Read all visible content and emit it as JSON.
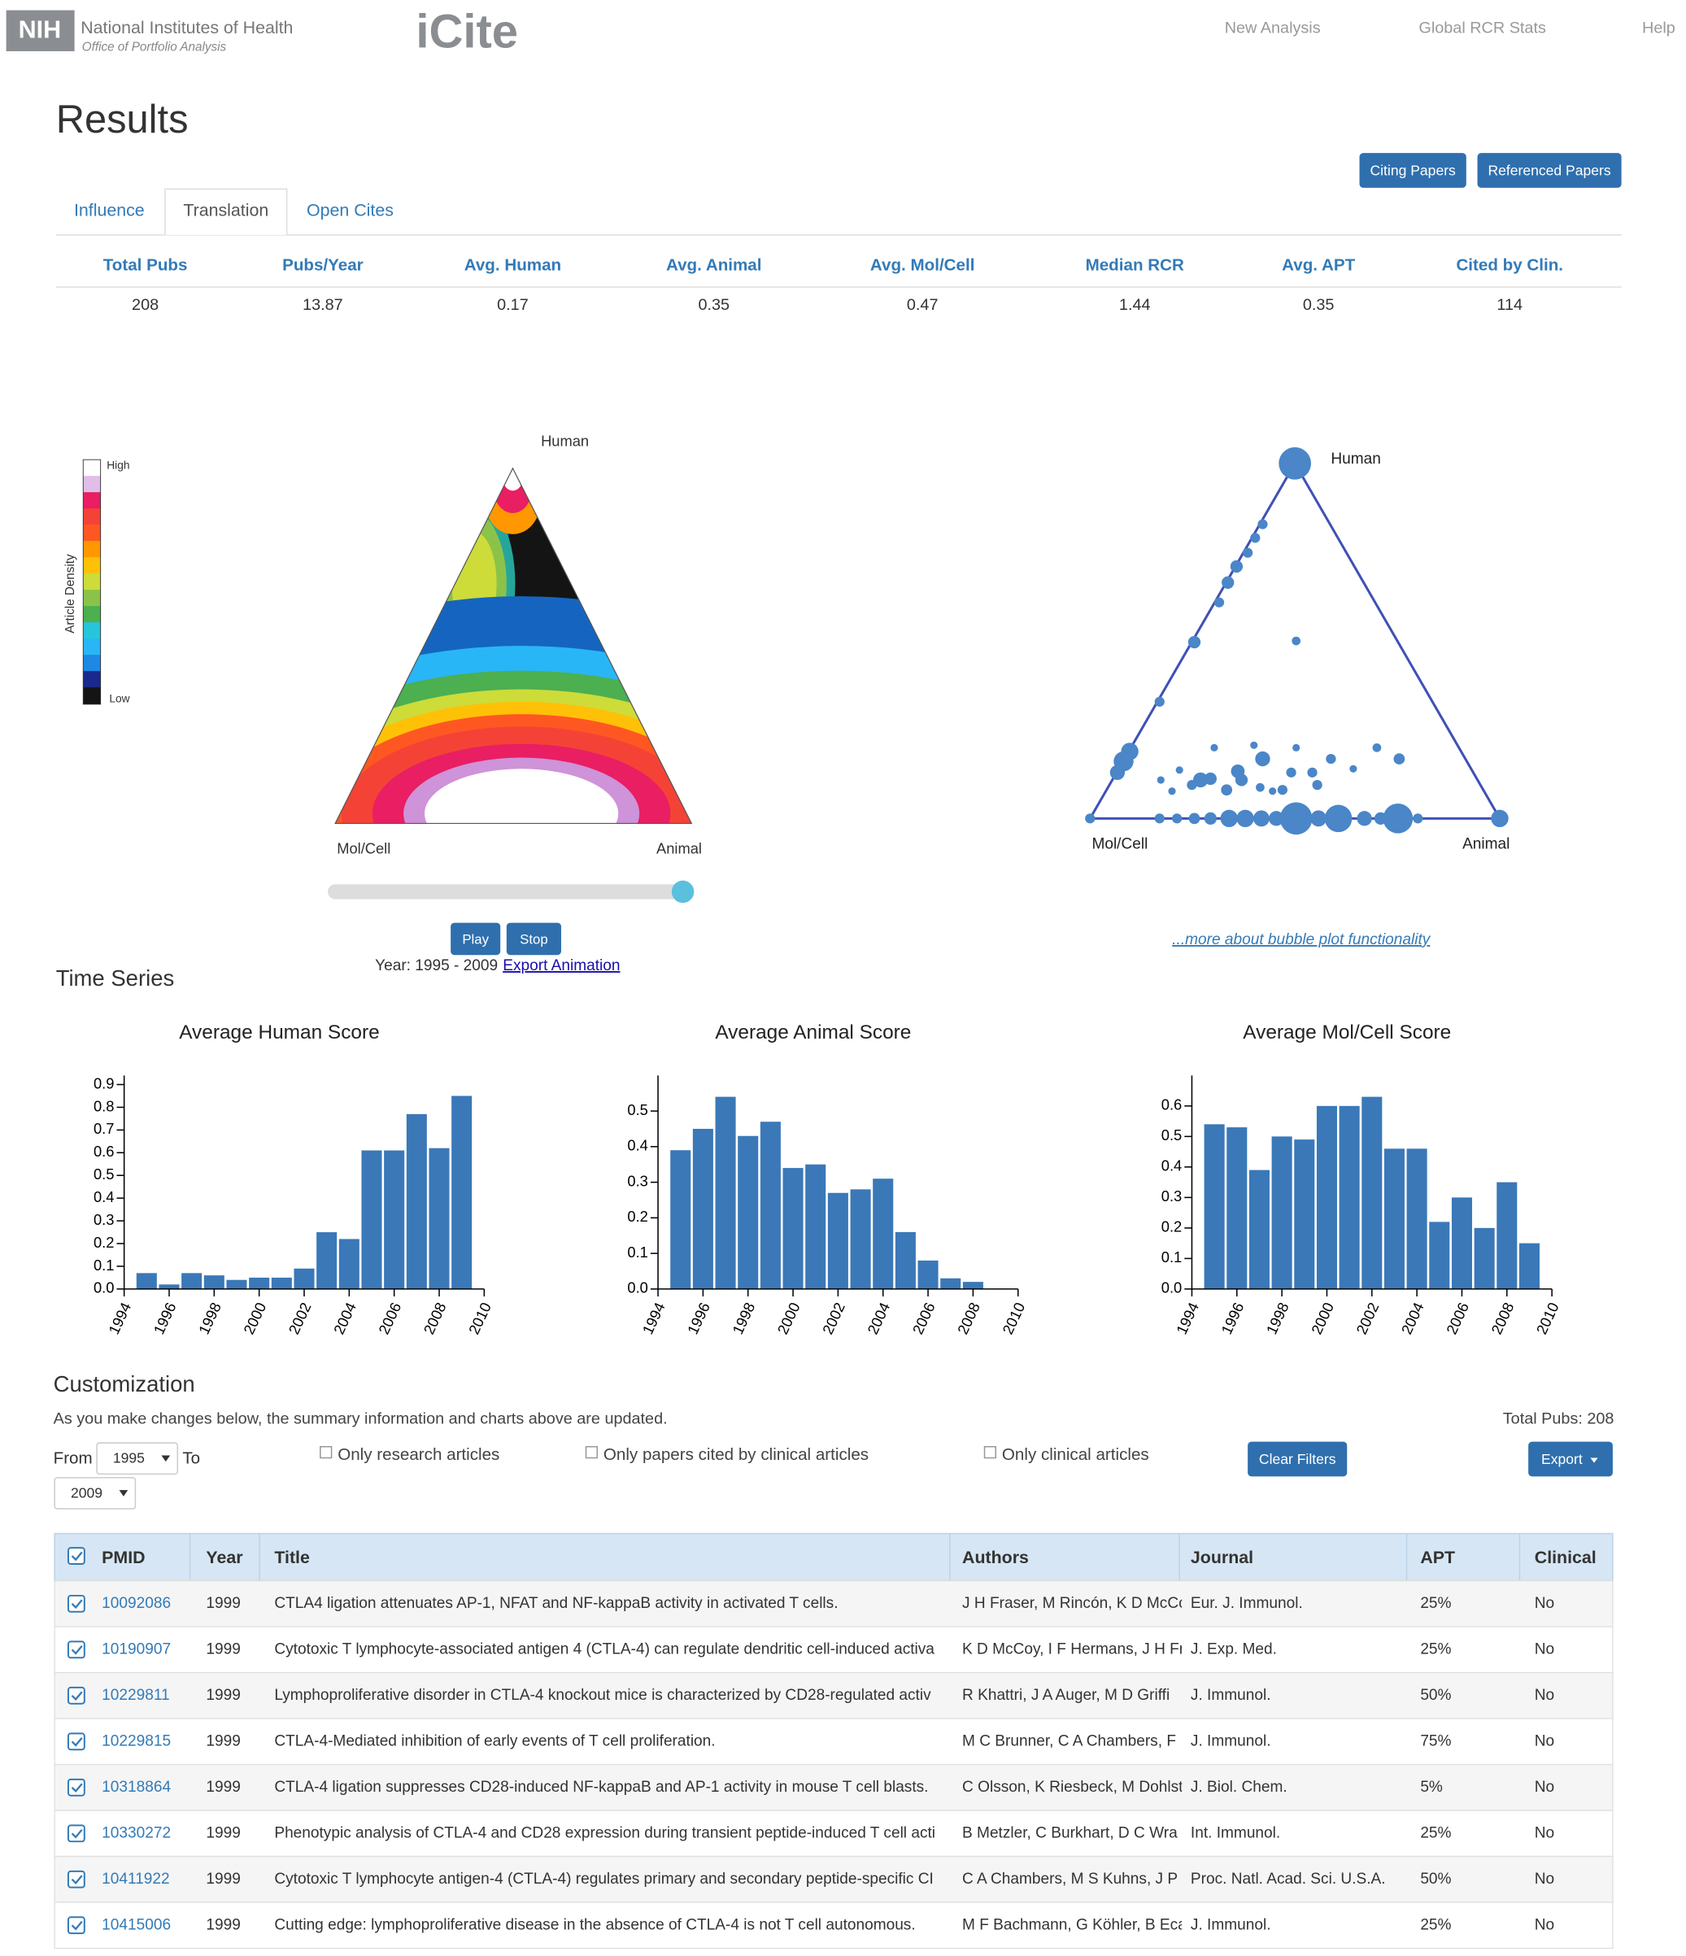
{
  "header": {
    "logo": "NIH",
    "org": "National Institutes of Health",
    "office": "Office of Portfolio Analysis",
    "app": "iCite",
    "nav": [
      "New Analysis",
      "Global RCR Stats",
      "Help"
    ]
  },
  "title": "Results",
  "buttons": [
    "Citing Papers",
    "Referenced Papers"
  ],
  "tabs": [
    "Influence",
    "Translation",
    "Open Cites"
  ],
  "summary": {
    "headers": [
      "Total Pubs",
      "Pubs/Year",
      "Avg. Human",
      "Avg. Animal",
      "Avg. Mol/Cell",
      "Median RCR",
      "Avg. APT",
      "Cited by Clin."
    ],
    "values": [
      208,
      13.87,
      0.17,
      0.35,
      0.47,
      1.44,
      0.35,
      114
    ]
  },
  "density_plot": {
    "legend_title": "Article Density",
    "high": "High",
    "low": "Low",
    "top": "Human",
    "left": "Mol/Cell",
    "right": "Animal",
    "play": "Play",
    "stop": "Stop",
    "years": "Year: 1995 - 2009",
    "export": "Export Animation"
  },
  "bubble_plot": {
    "top": "Human",
    "left": "Mol/Cell",
    "right": "Animal",
    "link": "...more about bubble plot functionality"
  },
  "time_series": {
    "title": "Time Series",
    "charts": [
      {
        "type": "bar",
        "title": "Average Human Score",
        "color": "#3a78b8",
        "x": [
          1995,
          1996,
          1997,
          1998,
          1999,
          2000,
          2001,
          2002,
          2003,
          2004,
          2005,
          2006,
          2007,
          2008,
          2009
        ],
        "values": [
          0.07,
          0.02,
          0.07,
          0.06,
          0.04,
          0.05,
          0.05,
          0.09,
          0.25,
          0.22,
          0.61,
          0.61,
          0.77,
          0.62,
          0.85
        ],
        "xlim": [
          1994,
          2010
        ],
        "xticks": [
          1994,
          1996,
          1998,
          2000,
          2002,
          2004,
          2006,
          2008,
          2010
        ],
        "ylim": [
          0,
          0.94
        ],
        "yticks": [
          {
            "value": 0,
            "label": "0.0"
          },
          0.1,
          0.2,
          0.3,
          0.4,
          0.5,
          0.6,
          0.7,
          0.8,
          0.9
        ]
      },
      {
        "type": "bar",
        "title": "Average Animal Score",
        "color": "#3a78b8",
        "x": [
          1995,
          1996,
          1997,
          1998,
          1999,
          2000,
          2001,
          2002,
          2003,
          2004,
          2005,
          2006,
          2007,
          2008,
          2009
        ],
        "values": [
          0.39,
          0.45,
          0.54,
          0.43,
          0.47,
          0.34,
          0.35,
          0.27,
          0.28,
          0.31,
          0.16,
          0.08,
          0.03,
          0.02,
          0
        ],
        "xlim": [
          1994,
          2010
        ],
        "xticks": [
          1994,
          1996,
          1998,
          2000,
          2002,
          2004,
          2006,
          2008,
          2010
        ],
        "ylim": [
          0,
          0.6
        ],
        "yticks": [
          {
            "value": 0,
            "label": "0.0"
          },
          0.1,
          0.2,
          0.3,
          0.4,
          0.5
        ]
      },
      {
        "type": "bar",
        "title": "Average Mol/Cell Score",
        "color": "#3a78b8",
        "x": [
          1995,
          1996,
          1997,
          1998,
          1999,
          2000,
          2001,
          2002,
          2003,
          2004,
          2005,
          2006,
          2007,
          2008,
          2009
        ],
        "values": [
          0.54,
          0.53,
          0.39,
          0.5,
          0.49,
          0.6,
          0.6,
          0.63,
          0.46,
          0.46,
          0.22,
          0.3,
          0.2,
          0.35,
          0.15
        ],
        "xlim": [
          1994,
          2010
        ],
        "xticks": [
          1994,
          1996,
          1998,
          2000,
          2002,
          2004,
          2006,
          2008,
          2010
        ],
        "ylim": [
          0,
          0.7
        ],
        "yticks": [
          {
            "value": 0,
            "label": "0.0"
          },
          0.1,
          0.2,
          0.3,
          0.4,
          0.5,
          0.6
        ]
      }
    ]
  },
  "customization": {
    "title": "Customization",
    "description": "As you make changes below, the summary information and charts above are updated.",
    "total": "Total Pubs: 208",
    "from": "From",
    "from_value": "1995",
    "to": "To",
    "to_value": "2009",
    "filters": [
      "Only research articles",
      "Only papers cited by clinical articles",
      "Only clinical articles"
    ],
    "clear": "Clear Filters",
    "export": "Export"
  },
  "table": {
    "headers": [
      "PMID",
      "Year",
      "Title",
      "Authors",
      "Journal",
      "APT",
      "Clinical"
    ],
    "rows": [
      [
        "10092086",
        1999,
        "CTLA4 ligation attenuates AP-1, NFAT and NF-kappaB activity in activated T cells.",
        "J H Fraser, M Rincón, K D McCc",
        "Eur. J. Immunol.",
        "25%",
        "No"
      ],
      [
        "10190907",
        1999,
        "Cytotoxic T lymphocyte-associated antigen 4 (CTLA-4) can regulate dendritic cell-induced activa",
        "K D McCoy, I F Hermans, J H Fr",
        "J. Exp. Med.",
        "25%",
        "No"
      ],
      [
        "10229811",
        1999,
        "Lymphoproliferative disorder in CTLA-4 knockout mice is characterized by CD28-regulated activ",
        "R Khattri, J A Auger, M D Griffi",
        "J. Immunol.",
        "50%",
        "No"
      ],
      [
        "10229815",
        1999,
        "CTLA-4-Mediated inhibition of early events of T cell proliferation.",
        "M C Brunner, C A Chambers, F",
        "J. Immunol.",
        "75%",
        "No"
      ],
      [
        "10318864",
        1999,
        "CTLA-4 ligation suppresses CD28-induced NF-kappaB and AP-1 activity in mouse T cell blasts.",
        "C Olsson, K Riesbeck, M Dohlst",
        "J. Biol. Chem.",
        "5%",
        "No"
      ],
      [
        "10330272",
        1999,
        "Phenotypic analysis of CTLA-4 and CD28 expression during transient peptide-induced T cell acti",
        "B Metzler, C Burkhart, D C Wra",
        "Int. Immunol.",
        "25%",
        "No"
      ],
      [
        "10411922",
        1999,
        "Cytotoxic T lymphocyte antigen-4 (CTLA-4) regulates primary and secondary peptide-specific CI",
        "C A Chambers, M S Kuhns, J P .",
        "Proc. Natl. Acad. Sci. U.S.A.",
        "50%",
        "No"
      ],
      [
        "10415006",
        1999,
        "Cutting edge: lymphoproliferative disease in the absence of CTLA-4 is not T cell autonomous.",
        "M F Bachmann, G Köhler, B Eca",
        "J. Immunol.",
        "25%",
        "No"
      ]
    ]
  }
}
